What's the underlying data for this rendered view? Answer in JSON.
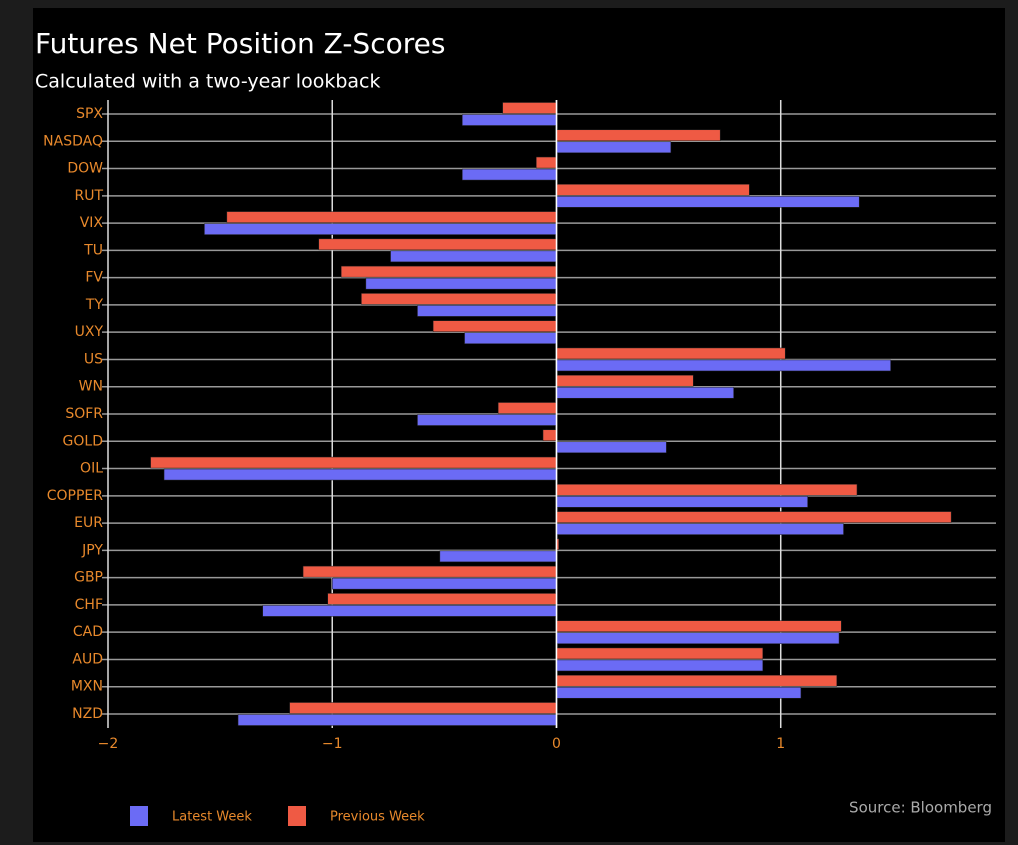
{
  "chart_data": {
    "type": "bar",
    "orientation": "horizontal",
    "title": "Futures Net Position Z-Scores",
    "subtitle": "Calculated with a two-year lookback",
    "source": "Source: Bloomberg",
    "categories": [
      "SPX",
      "NASDAQ",
      "DOW",
      "RUT",
      "VIX",
      "TU",
      "FV",
      "TY",
      "UXY",
      "US",
      "WN",
      "SOFR",
      "GOLD",
      "OIL",
      "COPPER",
      "EUR",
      "JPY",
      "GBP",
      "CHF",
      "CAD",
      "AUD",
      "MXN",
      "NZD"
    ],
    "series": [
      {
        "name": "Latest Week",
        "color": "#6b6bf5",
        "values": [
          -0.42,
          0.51,
          -0.42,
          1.35,
          -1.57,
          -0.74,
          -0.85,
          -0.62,
          -0.41,
          1.49,
          0.79,
          -0.62,
          0.49,
          -1.75,
          1.12,
          1.28,
          -0.52,
          -1.0,
          -1.31,
          1.26,
          0.92,
          1.09,
          -1.42
        ]
      },
      {
        "name": "Previous Week",
        "color": "#ef5a44",
        "values": [
          -0.24,
          0.73,
          -0.09,
          0.86,
          -1.47,
          -1.06,
          -0.96,
          -0.87,
          -0.55,
          1.02,
          0.61,
          -0.26,
          -0.06,
          -1.81,
          1.34,
          1.76,
          0.01,
          -1.13,
          -1.02,
          1.27,
          0.92,
          1.25,
          -1.19
        ]
      }
    ],
    "xlim": [
      -2,
      1.96
    ],
    "xticks": [
      {
        "value": -2,
        "label": "−2"
      },
      {
        "value": -1,
        "label": "−1"
      },
      0,
      1
    ],
    "grid": true
  }
}
